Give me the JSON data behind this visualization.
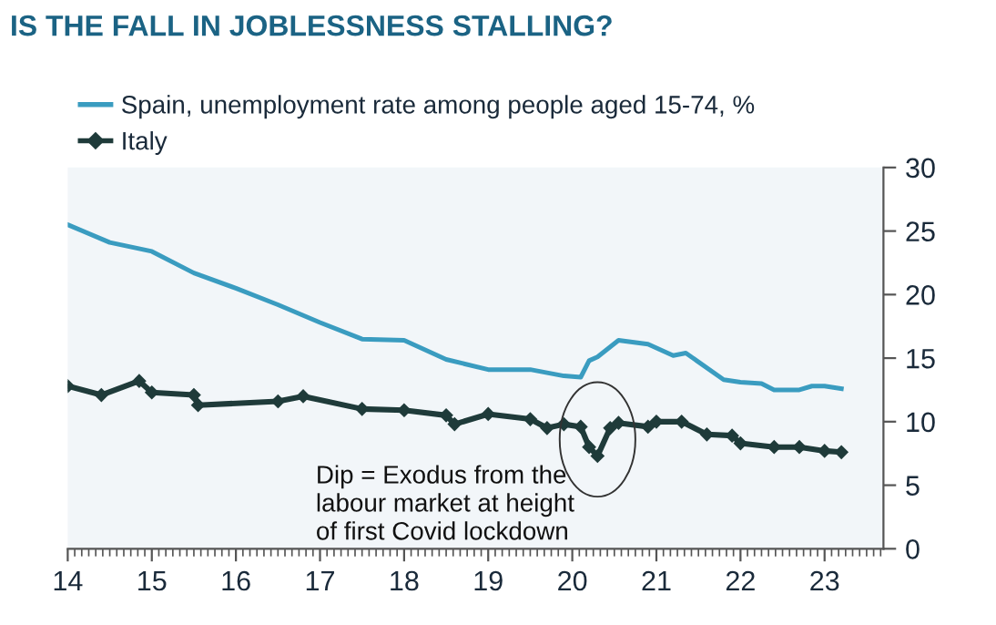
{
  "chart_data": {
    "type": "line",
    "title": "IS THE FALL IN JOBLESSNESS STALLING?",
    "xlim": [
      14,
      23.7
    ],
    "xticks": [
      14,
      15,
      16,
      17,
      18,
      19,
      20,
      21,
      22,
      23
    ],
    "ylim": [
      0,
      30
    ],
    "yticks": [
      0,
      5,
      10,
      15,
      20,
      25,
      30
    ],
    "grid": false,
    "legend": "top left",
    "series": [
      {
        "name": "Spain, unemployment rate among people aged 15-74, %",
        "color": "#3a9cc0",
        "marker": "none",
        "x": [
          14.0,
          14.5,
          15.0,
          15.5,
          16.0,
          16.5,
          17.0,
          17.5,
          18.0,
          18.5,
          19.0,
          19.5,
          19.9,
          20.1,
          20.2,
          20.3,
          20.55,
          20.9,
          21.2,
          21.35,
          21.8,
          22.0,
          22.25,
          22.4,
          22.7,
          22.85,
          23.0,
          23.2
        ],
        "values": [
          25.5,
          24.1,
          23.4,
          21.7,
          20.5,
          19.2,
          17.8,
          16.5,
          16.4,
          14.9,
          14.1,
          14.1,
          13.6,
          13.5,
          14.8,
          15.1,
          16.4,
          16.1,
          15.2,
          15.4,
          13.3,
          13.1,
          13.0,
          12.5,
          12.5,
          12.8,
          12.8,
          12.6
        ]
      },
      {
        "name": "Italy",
        "color": "#1f3b3a",
        "marker": "diamond",
        "x": [
          14.0,
          14.4,
          14.85,
          15.0,
          15.5,
          15.55,
          16.5,
          16.8,
          17.5,
          18.0,
          18.5,
          18.6,
          19.0,
          19.5,
          19.7,
          19.9,
          20.1,
          20.2,
          20.3,
          20.45,
          20.55,
          20.9,
          21.0,
          21.3,
          21.6,
          21.9,
          22.0,
          22.4,
          22.7,
          23.0,
          23.2
        ],
        "values": [
          12.8,
          12.1,
          13.2,
          12.3,
          12.1,
          11.3,
          11.6,
          12.0,
          11.0,
          10.9,
          10.5,
          9.8,
          10.6,
          10.2,
          9.5,
          9.8,
          9.6,
          8.0,
          7.3,
          9.5,
          9.9,
          9.6,
          10.0,
          10.0,
          9.0,
          8.9,
          8.3,
          8.0,
          8.0,
          7.7,
          7.6
        ]
      }
    ],
    "annotations": [
      {
        "text": "Dip = Exodus from the\nlabour market at height\nof first Covid lockdown",
        "x": 20.3,
        "y": 7.3
      }
    ]
  }
}
